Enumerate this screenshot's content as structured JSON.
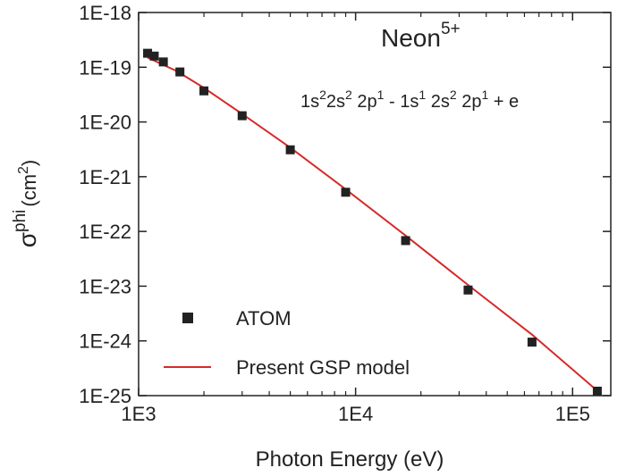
{
  "chart_data": {
    "type": "scatter",
    "xlabel": "Photon Energy (eV)",
    "ylabel": {
      "symbol": "σ",
      "sup": "phi",
      "unit_open": "(cm",
      "unit_sup": "2",
      "unit_close": ")"
    },
    "xscale": "log",
    "yscale": "log",
    "xlim": [
      1000,
      150000
    ],
    "ylim": [
      1e-25,
      1e-18
    ],
    "x_ticks": [
      {
        "value": 1000,
        "label": "1E3"
      },
      {
        "value": 10000,
        "label": "1E4"
      },
      {
        "value": 100000,
        "label": "1E5"
      }
    ],
    "y_ticks": [
      {
        "value": 1e-18,
        "label": "1E-18"
      },
      {
        "value": 1e-19,
        "label": "1E-19"
      },
      {
        "value": 1e-20,
        "label": "1E-20"
      },
      {
        "value": 1e-21,
        "label": "1E-21"
      },
      {
        "value": 1e-22,
        "label": "1E-22"
      },
      {
        "value": 1e-23,
        "label": "1E-23"
      },
      {
        "value": 1e-24,
        "label": "1E-24"
      },
      {
        "value": 1e-25,
        "label": "1E-25"
      }
    ],
    "annotation_title": {
      "text": "Neon",
      "sup": "5+"
    },
    "annotation_process": [
      {
        "t": "1s"
      },
      {
        "t": "2",
        "sup": true
      },
      {
        "t": "2s"
      },
      {
        "t": "2",
        "sup": true
      },
      {
        "t": " 2p"
      },
      {
        "t": "1",
        "sup": true
      },
      {
        "t": " -  1s"
      },
      {
        "t": "1",
        "sup": true
      },
      {
        "t": " 2s"
      },
      {
        "t": "2",
        "sup": true
      },
      {
        "t": " 2p"
      },
      {
        "t": "1",
        "sup": true
      },
      {
        "t": " + e"
      }
    ],
    "legend_position": "bottom-left",
    "series": [
      {
        "name": "ATOM",
        "style": "square-markers",
        "color": "#222222",
        "points": [
          [
            1100,
            1.8e-19
          ],
          [
            1180,
            1.6e-19
          ],
          [
            1300,
            1.25e-19
          ],
          [
            1550,
            8.2e-20
          ],
          [
            2000,
            3.7e-20
          ],
          [
            3000,
            1.3e-20
          ],
          [
            5000,
            3.1e-21
          ],
          [
            9000,
            5.2e-22
          ],
          [
            17000,
            6.8e-23
          ],
          [
            33000,
            8.5e-24
          ],
          [
            65000,
            9.5e-25
          ],
          [
            130000,
            9.8e-26
          ]
        ]
      },
      {
        "name": "Present GSP model",
        "style": "line",
        "color": "#d62a2a",
        "points": [
          [
            1100,
            1.5e-19
          ],
          [
            1500,
            8.5e-20
          ],
          [
            2000,
            4.2e-20
          ],
          [
            3000,
            1.4e-20
          ],
          [
            5000,
            3.4e-21
          ],
          [
            9000,
            5.9e-22
          ],
          [
            17000,
            8.4e-23
          ],
          [
            33000,
            1.05e-23
          ],
          [
            65000,
            1.3e-24
          ],
          [
            125000,
            1.4e-25
          ]
        ]
      }
    ]
  }
}
